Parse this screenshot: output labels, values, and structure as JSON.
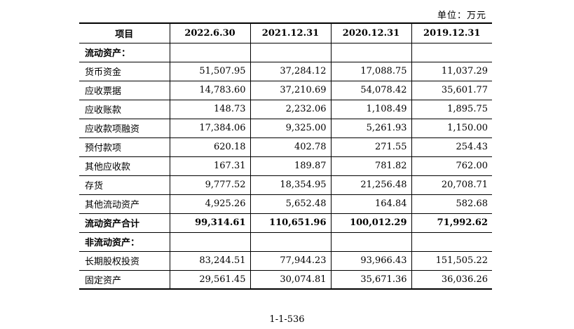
{
  "unit_label": "单位：万元",
  "header": {
    "item": "项目",
    "dates": [
      "2022.6.30",
      "2021.12.31",
      "2020.12.31",
      "2019.12.31"
    ]
  },
  "rows": [
    {
      "label": "流动资产：",
      "section": true,
      "values": [
        "",
        "",
        "",
        ""
      ]
    },
    {
      "label": "货币资金",
      "values": [
        "51,507.95",
        "37,284.12",
        "17,088.75",
        "11,037.29"
      ]
    },
    {
      "label": "应收票据",
      "values": [
        "14,783.60",
        "37,210.69",
        "54,078.42",
        "35,601.77"
      ]
    },
    {
      "label": "应收账款",
      "values": [
        "148.73",
        "2,232.06",
        "1,108.49",
        "1,895.75"
      ]
    },
    {
      "label": "应收款项融资",
      "values": [
        "17,384.06",
        "9,325.00",
        "5,261.93",
        "1,150.00"
      ]
    },
    {
      "label": "预付款项",
      "values": [
        "620.18",
        "402.78",
        "271.55",
        "254.43"
      ]
    },
    {
      "label": "其他应收款",
      "values": [
        "167.31",
        "189.87",
        "781.82",
        "762.00"
      ]
    },
    {
      "label": "存货",
      "values": [
        "9,777.52",
        "18,354.95",
        "21,256.48",
        "20,708.71"
      ]
    },
    {
      "label": "其他流动资产",
      "values": [
        "4,925.26",
        "5,652.48",
        "164.84",
        "582.68"
      ]
    },
    {
      "label": "流动资产合计",
      "bold": true,
      "values": [
        "99,314.61",
        "110,651.96",
        "100,012.29",
        "71,992.62"
      ]
    },
    {
      "label": "非流动资产：",
      "section": true,
      "values": [
        "",
        "",
        "",
        ""
      ]
    },
    {
      "label": "长期股权投资",
      "values": [
        "83,244.51",
        "77,944.23",
        "93,966.43",
        "151,505.22"
      ]
    },
    {
      "label": "固定资产",
      "values": [
        "29,561.45",
        "30,074.81",
        "35,671.36",
        "36,036.26"
      ]
    }
  ],
  "page_number": "1-1-536"
}
